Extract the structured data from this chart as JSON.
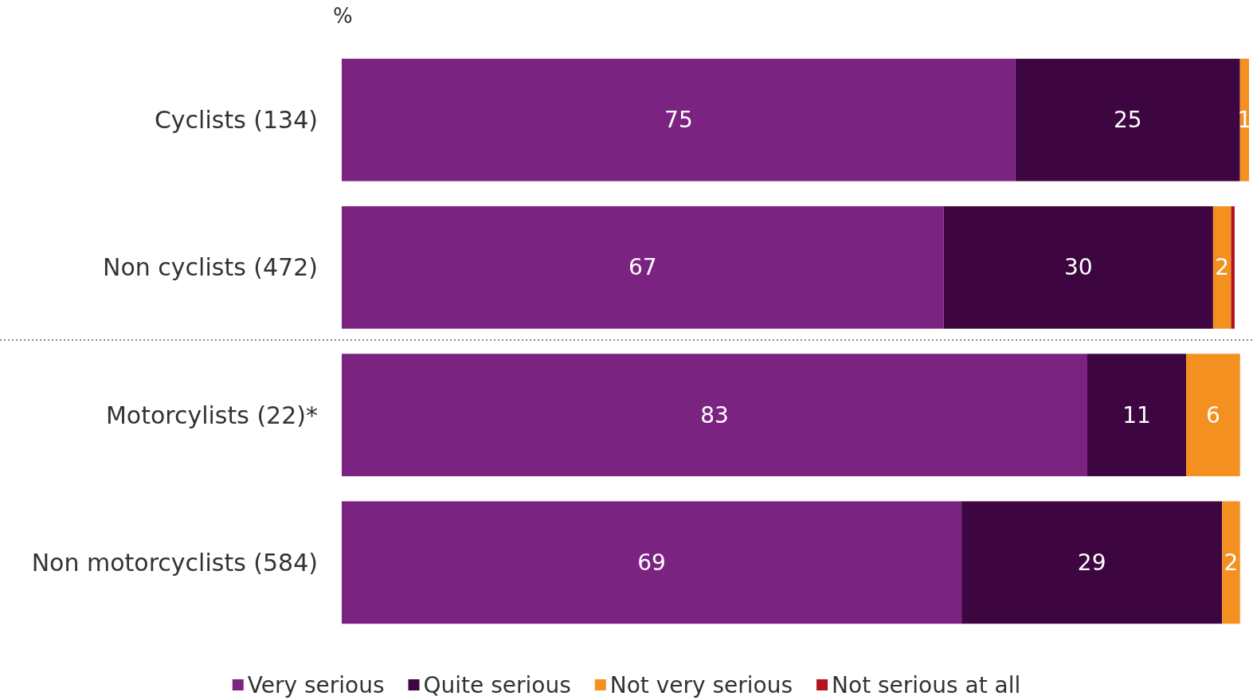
{
  "chart_data": {
    "type": "bar",
    "orientation": "horizontal",
    "stacked": true,
    "xlabel": "%",
    "categories": [
      "Cyclists (134)",
      "Non cyclists (472)",
      "Motorcylists (22)*",
      "Non motorcyclists (584)"
    ],
    "series": [
      {
        "name": "Very serious",
        "color": "#7b2380",
        "values": [
          75,
          67,
          83,
          69
        ],
        "value_labels": [
          "75",
          "67",
          "83",
          "69"
        ]
      },
      {
        "name": "Quite serious",
        "color": "#3d0640",
        "values": [
          25,
          30,
          11,
          29
        ],
        "value_labels": [
          "25",
          "30",
          "11",
          "29"
        ]
      },
      {
        "name": "Not very serious",
        "color": "#f39020",
        "values": [
          1,
          2,
          6,
          2
        ],
        "value_labels": [
          "1",
          "2",
          "6",
          "2"
        ]
      },
      {
        "name": "Not serious at all",
        "color": "#b5121b",
        "values": [
          null,
          0.4,
          null,
          null
        ],
        "value_labels": [
          null,
          null,
          null,
          null
        ]
      }
    ],
    "legend": "bottom",
    "tick_labels": "y"
  }
}
